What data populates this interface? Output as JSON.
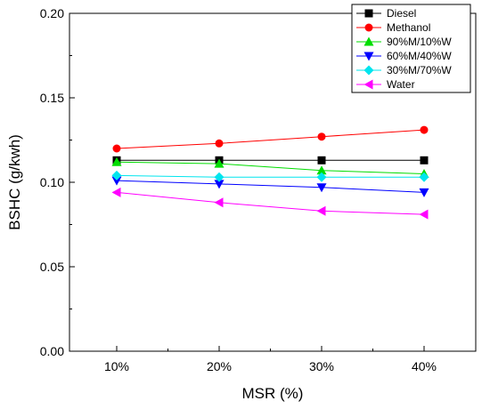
{
  "chart_data": {
    "type": "line",
    "title": "",
    "xlabel": "MSR (%)",
    "ylabel": "BSHC (g/kwh)",
    "categories": [
      "10%",
      "20%",
      "30%",
      "40%"
    ],
    "ylim": [
      0.0,
      0.2
    ],
    "yticks": [
      "0.00",
      "0.05",
      "0.10",
      "0.15",
      "0.20"
    ],
    "grid": false,
    "legend_position": "top-right",
    "series": [
      {
        "name": "Diesel",
        "values": [
          0.113,
          0.113,
          0.113,
          0.113
        ],
        "color": "#000000",
        "marker": "square"
      },
      {
        "name": "Methanol",
        "values": [
          0.12,
          0.123,
          0.127,
          0.131
        ],
        "color": "#ff0000",
        "marker": "circle"
      },
      {
        "name": "90%M/10%W",
        "values": [
          0.112,
          0.111,
          0.107,
          0.105
        ],
        "color": "#00dd00",
        "marker": "triangle-up"
      },
      {
        "name": "60%M/40%W",
        "values": [
          0.101,
          0.099,
          0.097,
          0.094
        ],
        "color": "#0000ff",
        "marker": "triangle-down"
      },
      {
        "name": "30%M/70%W",
        "values": [
          0.104,
          0.103,
          0.103,
          0.103
        ],
        "color": "#00e5ee",
        "marker": "diamond"
      },
      {
        "name": "Water",
        "values": [
          0.094,
          0.088,
          0.083,
          0.081
        ],
        "color": "#ff00ff",
        "marker": "triangle-left"
      }
    ]
  }
}
